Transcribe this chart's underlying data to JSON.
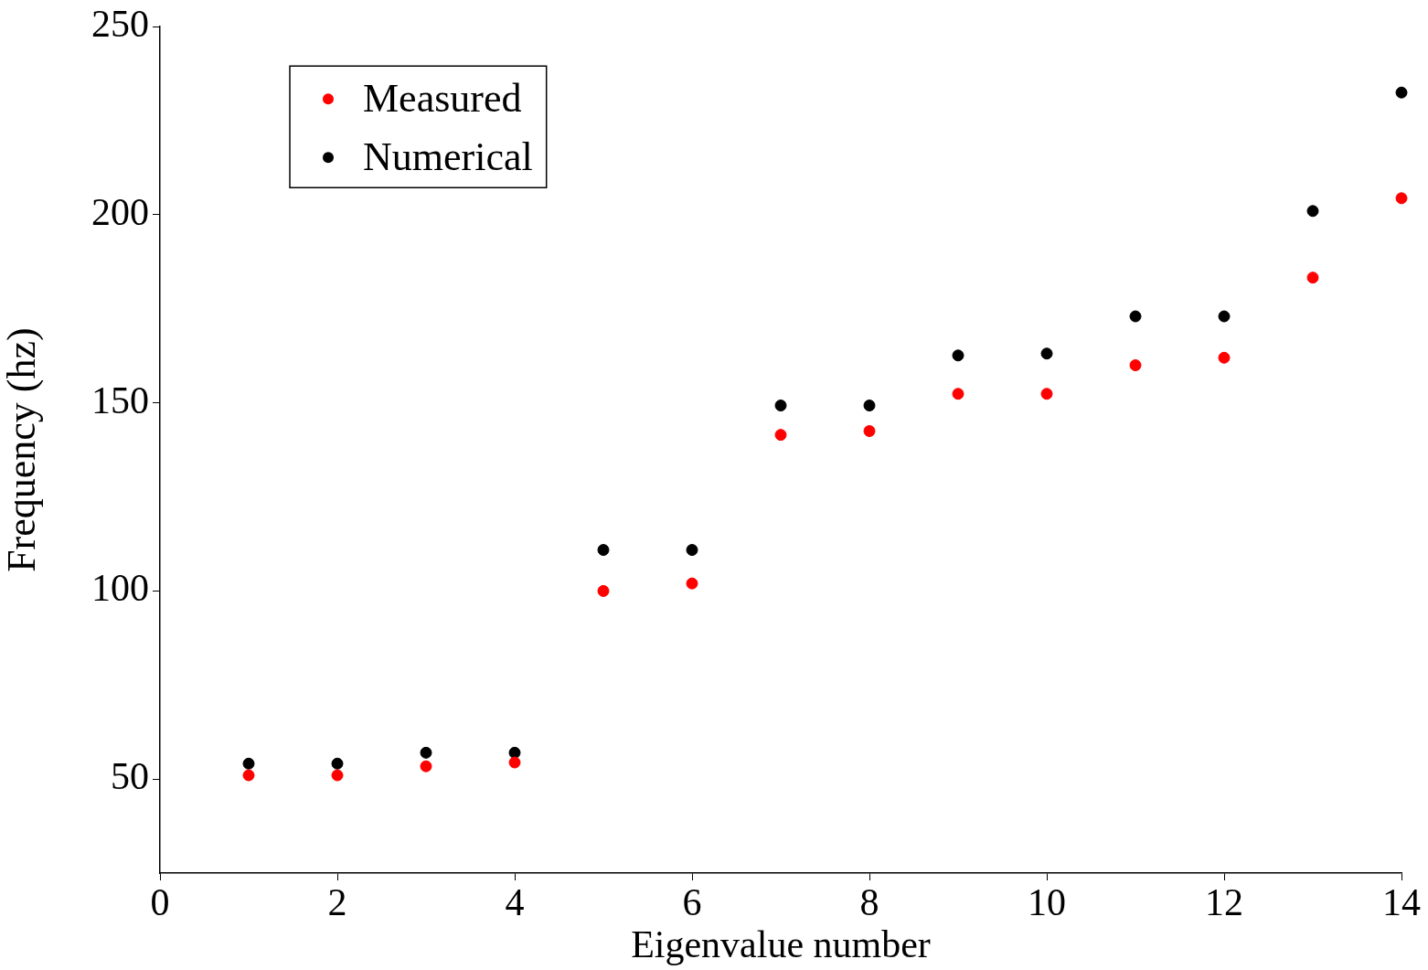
{
  "chart_data": {
    "type": "scatter",
    "xlabel": "Eigenvalue number",
    "ylabel": "Frequency (hz)",
    "x": [
      1,
      2,
      3,
      4,
      5,
      6,
      7,
      8,
      9,
      10,
      11,
      12,
      13,
      14
    ],
    "series": [
      {
        "name": "Measured",
        "color": "#ff0000",
        "values": [
          51,
          51,
          53.4,
          54.4,
          100,
          102,
          141.5,
          142.5,
          152.4,
          152.4,
          160,
          162,
          183.3,
          204.4
        ]
      },
      {
        "name": "Numerical",
        "color": "#000000",
        "values": [
          54.1,
          54.1,
          57,
          57,
          110.9,
          110.9,
          149.3,
          149.3,
          162.6,
          163.1,
          173,
          173,
          201,
          232.5
        ]
      }
    ],
    "xlim": [
      0,
      14
    ],
    "xticks": [
      0,
      2,
      4,
      6,
      8,
      10,
      12,
      14
    ],
    "ylim": [
      25,
      250
    ],
    "yticks": [
      50,
      100,
      150,
      200,
      250
    ],
    "grid": false,
    "legend": "top left",
    "marker": "circle"
  }
}
